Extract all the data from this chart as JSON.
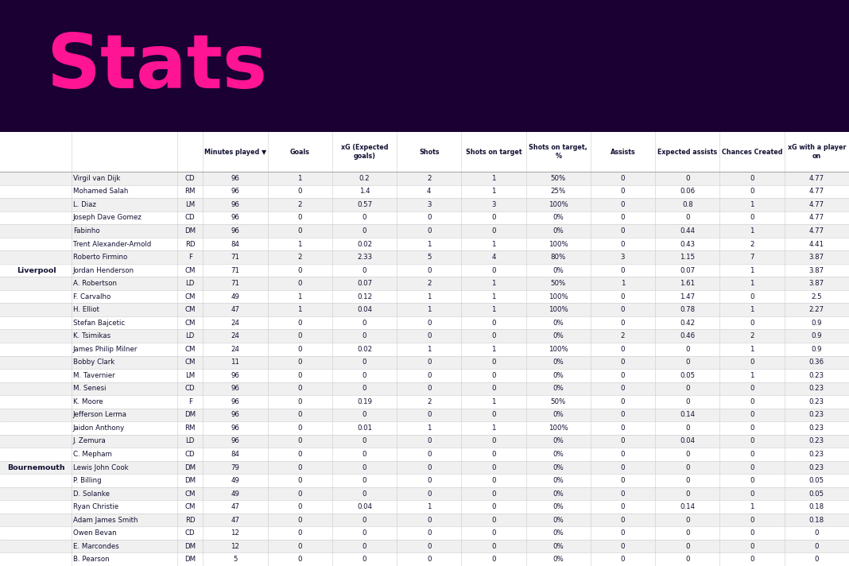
{
  "title": "Stats",
  "title_color": "#FF1493",
  "bg_color": "#1a0033",
  "table_bg": "#ffffff",
  "odd_row_color": "#f0f0f0",
  "even_row_color": "#ffffff",
  "col_headers": [
    "Minutes played ▼",
    "Goals",
    "xG (Expected\ngoals)",
    "Shots",
    "Shots on target",
    "Shots on target,\n%",
    "Assists",
    "Expected assists",
    "Chances Created",
    "xG with a player\non"
  ],
  "rows": [
    [
      "Liverpool",
      "Virgil van Dijk",
      "CD",
      "96",
      "1",
      "0.2",
      "2",
      "1",
      "50%",
      "0",
      "0",
      "0",
      "4.77"
    ],
    [
      "Liverpool",
      "Mohamed Salah",
      "RM",
      "96",
      "0",
      "1.4",
      "4",
      "1",
      "25%",
      "0",
      "0.06",
      "0",
      "4.77"
    ],
    [
      "Liverpool",
      "L. Diaz",
      "LM",
      "96",
      "2",
      "0.57",
      "3",
      "3",
      "100%",
      "0",
      "0.8",
      "1",
      "4.77"
    ],
    [
      "Liverpool",
      "Joseph Dave Gomez",
      "CD",
      "96",
      "0",
      "0",
      "0",
      "0",
      "0%",
      "0",
      "0",
      "0",
      "4.77"
    ],
    [
      "Liverpool",
      "Fabinho",
      "DM",
      "96",
      "0",
      "0",
      "0",
      "0",
      "0%",
      "0",
      "0.44",
      "1",
      "4.77"
    ],
    [
      "Liverpool",
      "Trent Alexander-Arnold",
      "RD",
      "84",
      "1",
      "0.02",
      "1",
      "1",
      "100%",
      "0",
      "0.43",
      "2",
      "4.41"
    ],
    [
      "Liverpool",
      "Roberto Firmino",
      "F",
      "71",
      "2",
      "2.33",
      "5",
      "4",
      "80%",
      "3",
      "1.15",
      "7",
      "3.87"
    ],
    [
      "Liverpool",
      "Jordan Henderson",
      "CM",
      "71",
      "0",
      "0",
      "0",
      "0",
      "0%",
      "0",
      "0.07",
      "1",
      "3.87"
    ],
    [
      "Liverpool",
      "A. Robertson",
      "LD",
      "71",
      "0",
      "0.07",
      "2",
      "1",
      "50%",
      "1",
      "1.61",
      "1",
      "3.87"
    ],
    [
      "Liverpool",
      "F. Carvalho",
      "CM",
      "49",
      "1",
      "0.12",
      "1",
      "1",
      "100%",
      "0",
      "1.47",
      "0",
      "2.5"
    ],
    [
      "Liverpool",
      "H. Elliot",
      "CM",
      "47",
      "1",
      "0.04",
      "1",
      "1",
      "100%",
      "0",
      "0.78",
      "1",
      "2.27"
    ],
    [
      "Liverpool",
      "Stefan Bajcetic",
      "CM",
      "24",
      "0",
      "0",
      "0",
      "0",
      "0%",
      "0",
      "0.42",
      "0",
      "0.9"
    ],
    [
      "Liverpool",
      "K. Tsimikas",
      "LD",
      "24",
      "0",
      "0",
      "0",
      "0",
      "0%",
      "2",
      "0.46",
      "2",
      "0.9"
    ],
    [
      "Liverpool",
      "James Philip Milner",
      "CM",
      "24",
      "0",
      "0.02",
      "1",
      "1",
      "100%",
      "0",
      "0",
      "1",
      "0.9"
    ],
    [
      "Liverpool",
      "Bobby Clark",
      "CM",
      "11",
      "0",
      "0",
      "0",
      "0",
      "0%",
      "0",
      "0",
      "0",
      "0.36"
    ],
    [
      "Bournemouth",
      "M. Tavernier",
      "LM",
      "96",
      "0",
      "0",
      "0",
      "0",
      "0%",
      "0",
      "0.05",
      "1",
      "0.23"
    ],
    [
      "Bournemouth",
      "M. Senesi",
      "CD",
      "96",
      "0",
      "0",
      "0",
      "0",
      "0%",
      "0",
      "0",
      "0",
      "0.23"
    ],
    [
      "Bournemouth",
      "K. Moore",
      "F",
      "96",
      "0",
      "0.19",
      "2",
      "1",
      "50%",
      "0",
      "0",
      "0",
      "0.23"
    ],
    [
      "Bournemouth",
      "Jefferson Lerma",
      "DM",
      "96",
      "0",
      "0",
      "0",
      "0",
      "0%",
      "0",
      "0.14",
      "0",
      "0.23"
    ],
    [
      "Bournemouth",
      "Jaidon Anthony",
      "RM",
      "96",
      "0",
      "0.01",
      "1",
      "1",
      "100%",
      "0",
      "0",
      "0",
      "0.23"
    ],
    [
      "Bournemouth",
      "J. Zemura",
      "LD",
      "96",
      "0",
      "0",
      "0",
      "0",
      "0%",
      "0",
      "0.04",
      "0",
      "0.23"
    ],
    [
      "Bournemouth",
      "C. Mepham",
      "CD",
      "84",
      "0",
      "0",
      "0",
      "0",
      "0%",
      "0",
      "0",
      "0",
      "0.23"
    ],
    [
      "Bournemouth",
      "Lewis John Cook",
      "DM",
      "79",
      "0",
      "0",
      "0",
      "0",
      "0%",
      "0",
      "0",
      "0",
      "0.23"
    ],
    [
      "Bournemouth",
      "P. Billing",
      "DM",
      "49",
      "0",
      "0",
      "0",
      "0",
      "0%",
      "0",
      "0",
      "0",
      "0.05"
    ],
    [
      "Bournemouth",
      "D. Solanke",
      "CM",
      "49",
      "0",
      "0",
      "0",
      "0",
      "0%",
      "0",
      "0",
      "0",
      "0.05"
    ],
    [
      "Bournemouth",
      "Ryan Christie",
      "CM",
      "47",
      "0",
      "0.04",
      "1",
      "0",
      "0%",
      "0",
      "0.14",
      "1",
      "0.18"
    ],
    [
      "Bournemouth",
      "Adam James Smith",
      "RD",
      "47",
      "0",
      "0",
      "0",
      "0",
      "0%",
      "0",
      "0",
      "0",
      "0.18"
    ],
    [
      "Bournemouth",
      "Owen Bevan",
      "CD",
      "12",
      "0",
      "0",
      "0",
      "0",
      "0%",
      "0",
      "0",
      "0",
      "0"
    ],
    [
      "Bournemouth",
      "E. Marcondes",
      "DM",
      "12",
      "0",
      "0",
      "0",
      "0",
      "0%",
      "0",
      "0",
      "0",
      "0"
    ],
    [
      "Bournemouth",
      "B. Pearson",
      "DM",
      "5",
      "0",
      "0",
      "0",
      "0",
      "0%",
      "0",
      "0",
      "0",
      "0"
    ]
  ]
}
